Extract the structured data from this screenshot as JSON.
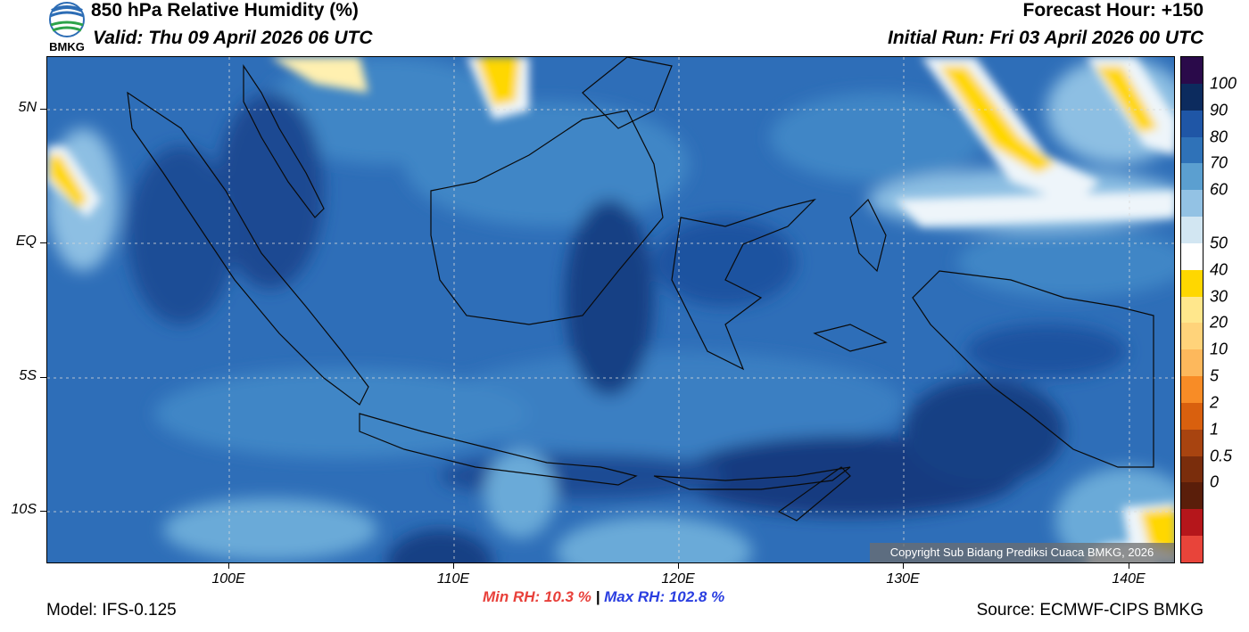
{
  "header": {
    "title": "850 hPa Relative Humidity (%)",
    "valid": "Valid: Thu 09 April 2026 06 UTC",
    "forecast_hour": "Forecast Hour: +150",
    "initial_run": "Initial Run: Fri 03 April 2026 00 UTC"
  },
  "logo": {
    "text": "BMKG",
    "icon": "bmkg-logo-icon"
  },
  "map": {
    "lat_labels": [
      "5N",
      "EQ",
      "5S",
      "10S"
    ],
    "lon_labels": [
      "100E",
      "110E",
      "120E",
      "130E",
      "140E"
    ],
    "copyright": "Copyright Sub Bidang Prediksi Cuaca BMKG, 2026"
  },
  "colorbar": {
    "labels": [
      "100",
      "90",
      "80",
      "70",
      "60",
      "50",
      "40",
      "30",
      "20",
      "10",
      "5",
      "2",
      "1",
      "0.5",
      "0"
    ],
    "colors": [
      "#2a0a4a",
      "#0c2b5e",
      "#1f56a6",
      "#2f72b8",
      "#5b9fd0",
      "#93c2e4",
      "#d2e6f2",
      "#ffffff",
      "#ffd700",
      "#ffe78c",
      "#ffd37a",
      "#fdb85c",
      "#f88c26",
      "#d9600e",
      "#a84410",
      "#7a2d0c",
      "#5a1e0a",
      "#b5161b",
      "#e8443a"
    ]
  },
  "stats": {
    "min_rh": "Min RH:  10.3 %",
    "separator": "|",
    "max_rh": "Max RH: 102.8 %"
  },
  "footer": {
    "model": "Model: IFS-0.125",
    "source": "Source: ECMWF-CIPS BMKG"
  }
}
